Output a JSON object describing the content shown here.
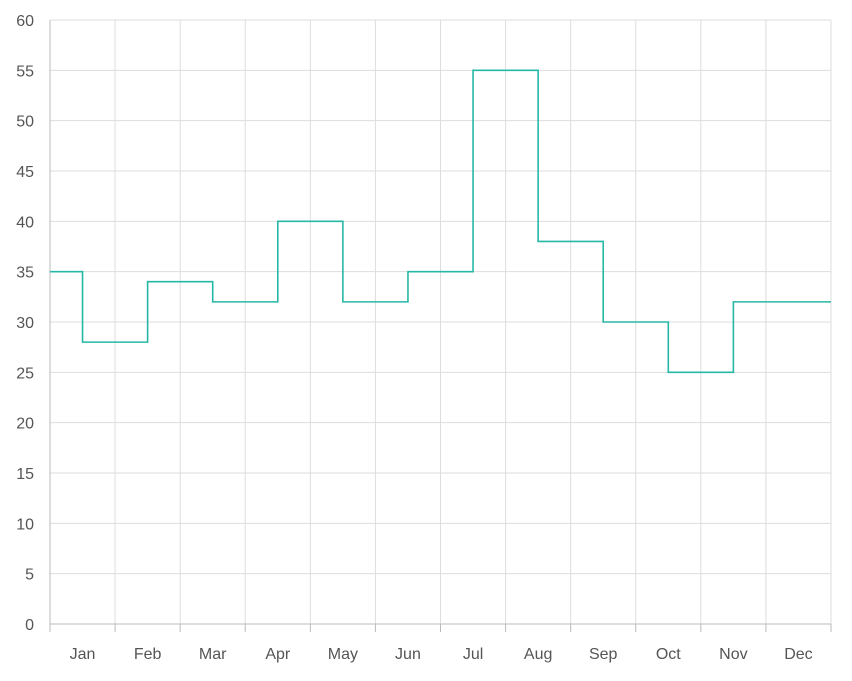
{
  "chart_data": {
    "type": "line",
    "step": "center",
    "categories": [
      "Jan",
      "Feb",
      "Mar",
      "Apr",
      "May",
      "Jun",
      "Jul",
      "Aug",
      "Sep",
      "Oct",
      "Nov",
      "Dec"
    ],
    "series": [
      {
        "values": [
          35,
          28,
          34,
          32,
          40,
          32,
          35,
          55,
          38,
          30,
          25,
          32
        ],
        "color": "#26b8a6"
      }
    ],
    "title": "",
    "xlabel": "",
    "ylabel": "",
    "ylim": [
      0,
      60
    ],
    "ytick_step": 5,
    "grid": true,
    "grid_color": "#dddddd",
    "axis_color": "#bbbbbb"
  }
}
